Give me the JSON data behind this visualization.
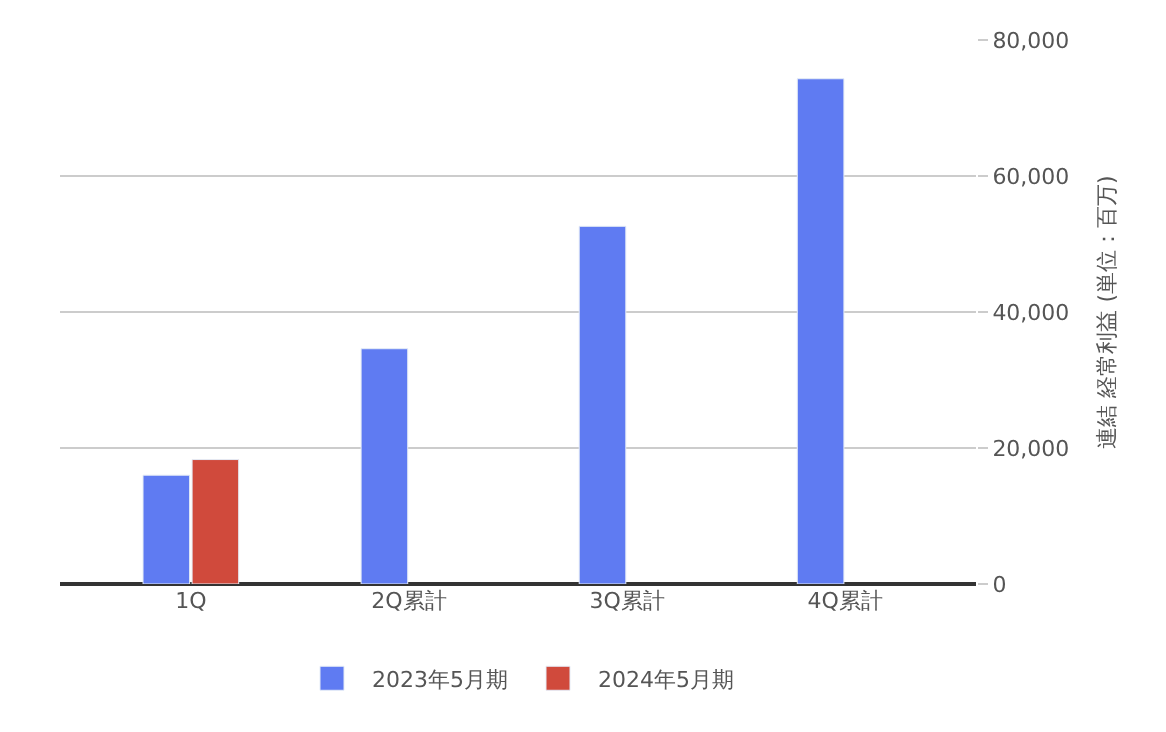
{
  "chart_data": {
    "type": "bar",
    "categories": [
      "1Q",
      "2Q累計",
      "3Q累計",
      "4Q累計"
    ],
    "series": [
      {
        "name": "2023年5月期",
        "color": "#5f7bf2",
        "values": [
          16000,
          34600,
          52600,
          74300
        ]
      },
      {
        "name": "2024年5月期",
        "color": "#d04a3c",
        "values": [
          18300,
          null,
          null,
          null
        ]
      }
    ],
    "ylabel": "連結 経常利益 (単位：百万)",
    "ylim": [
      0,
      80000
    ],
    "yticks": [
      {
        "value": 0,
        "label": "0"
      },
      {
        "value": 20000,
        "label": "20,000"
      },
      {
        "value": 40000,
        "label": "40,000"
      },
      {
        "value": 60000,
        "label": "60,000"
      },
      {
        "value": 80000,
        "label": "80,000"
      }
    ],
    "grid": "y",
    "legend": "bottom"
  }
}
